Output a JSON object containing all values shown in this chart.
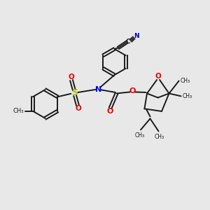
{
  "bg_color": "#e8e8e8",
  "bond_color": "#1a1a1a",
  "n_color": "#0000ee",
  "o_color": "#ee0000",
  "s_color": "#bbbb00",
  "cn_color": "#0000cc",
  "figsize": [
    3.0,
    3.0
  ],
  "dpi": 100,
  "xlim": [
    0,
    10
  ],
  "ylim": [
    0,
    10
  ]
}
